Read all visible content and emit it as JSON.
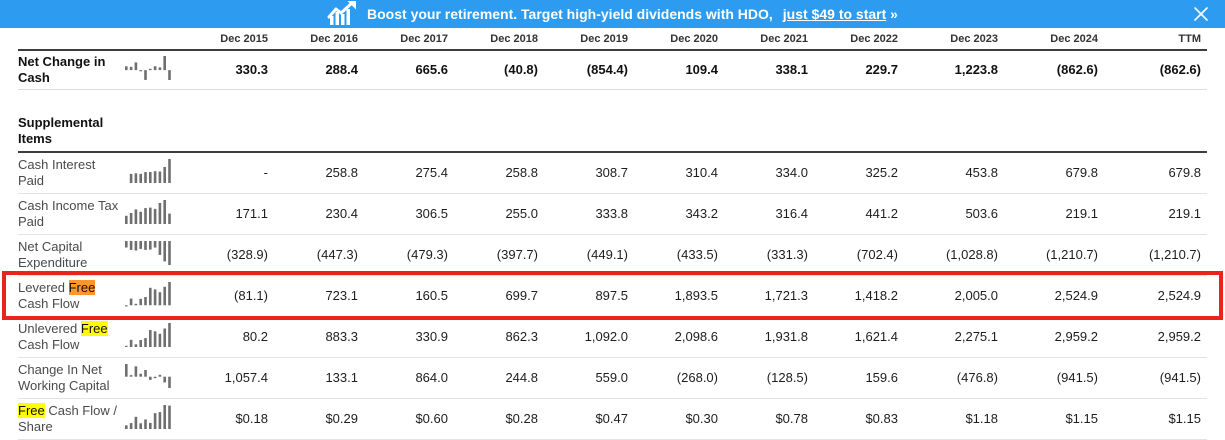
{
  "banner": {
    "text_before": "Boost your retirement. Target high-yield dividends with HDO, ",
    "link_text": "just $49 to start",
    "link_arrow": " »",
    "background_color": "#2D9BF0",
    "icon": "stock-rising-chart"
  },
  "highlight": {
    "active_match_color": "#FF9632",
    "other_match_color": "#FFFF00",
    "row_box_color": "#E8251D"
  },
  "table": {
    "headers": [
      "Dec 2015",
      "Dec 2016",
      "Dec 2017",
      "Dec 2018",
      "Dec 2019",
      "Dec 2020",
      "Dec 2021",
      "Dec 2022",
      "Dec 2023",
      "Dec 2024",
      "TTM"
    ],
    "rows": [
      {
        "id": "net-change-in-cash",
        "bold": true,
        "label": [
          {
            "text": "Net Change in Cash"
          }
        ],
        "values": [
          "330.3",
          "288.4",
          "665.6",
          "(40.8)",
          "(854.4)",
          "109.4",
          "338.1",
          "229.7",
          "1,223.8",
          "(862.6)",
          "(862.6)"
        ]
      },
      {
        "id": "spacer",
        "type": "spacer"
      },
      {
        "id": "supplemental-items",
        "type": "section",
        "label": [
          {
            "text": "Supplemental Items"
          }
        ]
      },
      {
        "id": "cash-interest-paid",
        "label": [
          {
            "text": "Cash Interest Paid"
          }
        ],
        "values": [
          "-",
          "258.8",
          "275.4",
          "258.8",
          "308.7",
          "310.4",
          "334.0",
          "325.2",
          "453.8",
          "679.8",
          "679.8"
        ]
      },
      {
        "id": "cash-income-tax-paid",
        "label": [
          {
            "text": "Cash Income Tax Paid"
          }
        ],
        "values": [
          "171.1",
          "230.4",
          "306.5",
          "255.0",
          "333.8",
          "343.2",
          "316.4",
          "441.2",
          "503.6",
          "219.1",
          "219.1"
        ]
      },
      {
        "id": "net-capital-expenditure",
        "label": [
          {
            "text": "Net Capital Expenditure"
          }
        ],
        "values": [
          "(328.9)",
          "(447.3)",
          "(479.3)",
          "(397.7)",
          "(449.1)",
          "(433.5)",
          "(331.3)",
          "(702.4)",
          "(1,028.8)",
          "(1,210.7)",
          "(1,210.7)"
        ]
      },
      {
        "id": "levered-free-cash-flow",
        "highlighted": true,
        "label": [
          {
            "text": "Levered "
          },
          {
            "text": "Free",
            "mark": "active"
          },
          {
            "text": " Cash Flow"
          }
        ],
        "values": [
          "(81.1)",
          "723.1",
          "160.5",
          "699.7",
          "897.5",
          "1,893.5",
          "1,721.3",
          "1,418.2",
          "2,005.0",
          "2,524.9",
          "2,524.9"
        ]
      },
      {
        "id": "unlevered-free-cash-flow",
        "label": [
          {
            "text": "Unlevered "
          },
          {
            "text": "Free",
            "mark": "match"
          },
          {
            "text": " Cash Flow"
          }
        ],
        "values": [
          "80.2",
          "883.3",
          "330.9",
          "862.3",
          "1,092.0",
          "2,098.6",
          "1,931.8",
          "1,621.4",
          "2,275.1",
          "2,959.2",
          "2,959.2"
        ]
      },
      {
        "id": "change-in-net-working-capital",
        "label": [
          {
            "text": "Change In Net Working Capital"
          }
        ],
        "values": [
          "1,057.4",
          "133.1",
          "864.0",
          "244.8",
          "559.0",
          "(268.0)",
          "(128.5)",
          "159.6",
          "(476.8)",
          "(941.5)",
          "(941.5)"
        ]
      },
      {
        "id": "free-cash-flow-per-share",
        "label": [
          {
            "text": "Free",
            "mark": "match"
          },
          {
            "text": " Cash Flow / Share"
          }
        ],
        "values": [
          "$0.18",
          "$0.29",
          "$0.60",
          "$0.28",
          "$0.47",
          "$0.30",
          "$0.78",
          "$0.83",
          "$1.18",
          "$1.15",
          "$1.15"
        ]
      }
    ]
  }
}
